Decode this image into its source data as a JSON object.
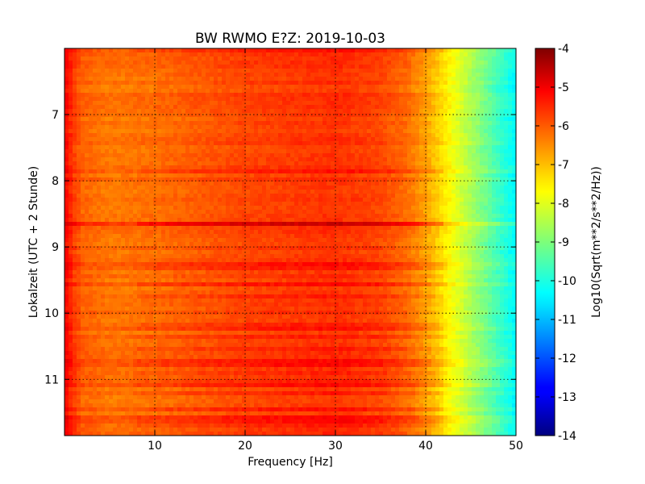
{
  "chart_data": {
    "type": "heatmap",
    "title": "BW RWMO E?Z: 2019-10-03",
    "xlabel": "Frequency [Hz]",
    "ylabel": "Lokalzeit (UTC + 2 Stunde)",
    "xlim": [
      0,
      50
    ],
    "ylim": [
      11.85,
      6.0
    ],
    "x_ticks": [
      "10",
      "20",
      "30",
      "40",
      "50"
    ],
    "x_tick_values": [
      10,
      20,
      30,
      40,
      50
    ],
    "y_ticks": [
      "7",
      "8",
      "9",
      "10",
      "11"
    ],
    "y_tick_values": [
      7,
      8,
      9,
      10,
      11
    ],
    "grid": true,
    "colormap": "jet",
    "colorbar": {
      "label": "Log10(Sqrt(m**2/s**2/Hz))",
      "range": [
        -14,
        -4
      ],
      "ticks": [
        "-4",
        "-5",
        "-6",
        "-7",
        "-8",
        "-9",
        "-10",
        "-11",
        "-12",
        "-13",
        "-14"
      ],
      "tick_values": [
        -4,
        -5,
        -6,
        -7,
        -8,
        -9,
        -10,
        -11,
        -12,
        -13,
        -14
      ]
    },
    "spectrum_profile": {
      "frequency_hz": [
        0,
        1,
        2,
        5,
        10,
        15,
        20,
        25,
        30,
        35,
        38,
        40,
        42,
        44,
        46,
        48,
        50
      ],
      "log10_amplitude": [
        -5.2,
        -5.8,
        -6.2,
        -6.4,
        -6.3,
        -6.1,
        -5.9,
        -5.8,
        -5.7,
        -5.9,
        -6.3,
        -6.8,
        -7.5,
        -8.2,
        -8.9,
        -9.6,
        -10.3
      ]
    },
    "strong_bands_local_time": [
      6.05,
      7.85,
      8.65,
      9.3,
      9.55,
      9.75,
      10.2,
      10.35,
      10.55,
      10.75,
      10.9,
      11.05,
      11.2,
      11.45,
      11.6,
      11.7
    ],
    "strongest_band_local_time": 8.65
  }
}
